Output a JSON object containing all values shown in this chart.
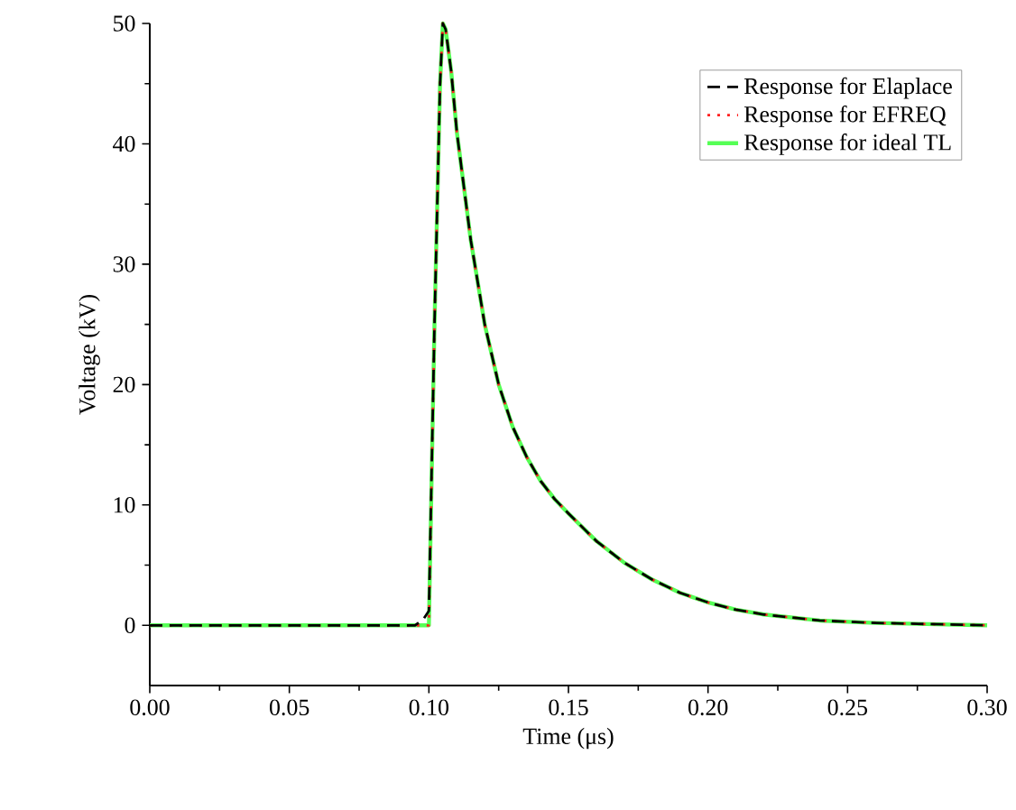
{
  "chart_data": {
    "type": "line",
    "xlabel": "Time (μs)",
    "ylabel": "Voltage (kV)",
    "xlim": [
      0,
      0.3
    ],
    "ylim": [
      -5,
      50
    ],
    "xticks": [
      {
        "value": 0,
        "label": "0.00"
      },
      {
        "value": 0.05,
        "label": "0.05"
      },
      {
        "value": 0.1,
        "label": "0.10"
      },
      {
        "value": 0.15,
        "label": "0.15"
      },
      {
        "value": 0.2,
        "label": "0.20"
      },
      {
        "value": 0.25,
        "label": "0.25"
      },
      {
        "value": 0.3,
        "label": "0.30"
      }
    ],
    "yticks": [
      0,
      10,
      20,
      30,
      40,
      50
    ],
    "legend": "top right",
    "x": [
      0,
      0.05,
      0.095,
      0.098,
      0.1,
      0.102,
      0.104,
      0.105,
      0.106,
      0.108,
      0.11,
      0.115,
      0.12,
      0.125,
      0.13,
      0.135,
      0.14,
      0.145,
      0.15,
      0.16,
      0.17,
      0.18,
      0.19,
      0.2,
      0.21,
      0.22,
      0.24,
      0.26,
      0.28,
      0.3
    ],
    "series": [
      {
        "name": "Response for Elaplace",
        "color": "#000000",
        "line_style": "dashed",
        "values": [
          0,
          0,
          0,
          0.5,
          1.2,
          25,
          45,
          50,
          49.5,
          46,
          41,
          32,
          25,
          20,
          16.5,
          14,
          12,
          10.5,
          9.3,
          7,
          5.2,
          3.8,
          2.7,
          1.9,
          1.3,
          0.9,
          0.4,
          0.2,
          0.1,
          0
        ]
      },
      {
        "name": "Response for EFREQ",
        "color": "#ff2020",
        "line_style": "dotted",
        "values": [
          0,
          0,
          0,
          0,
          0,
          25,
          45,
          50,
          49.5,
          46,
          41,
          32,
          25,
          20,
          16.5,
          14,
          12,
          10.5,
          9.3,
          7,
          5.2,
          3.8,
          2.7,
          1.9,
          1.3,
          0.9,
          0.4,
          0.2,
          0.1,
          0
        ]
      },
      {
        "name": "Response for ideal TL",
        "color": "#55ff55",
        "line_style": "solid",
        "values": [
          0,
          0,
          0,
          0,
          0,
          25,
          45,
          50,
          49.5,
          46,
          41,
          32,
          25,
          20,
          16.5,
          14,
          12,
          10.5,
          9.3,
          7,
          5.2,
          3.8,
          2.7,
          1.9,
          1.3,
          0.9,
          0.4,
          0.2,
          0.1,
          0
        ]
      }
    ]
  }
}
